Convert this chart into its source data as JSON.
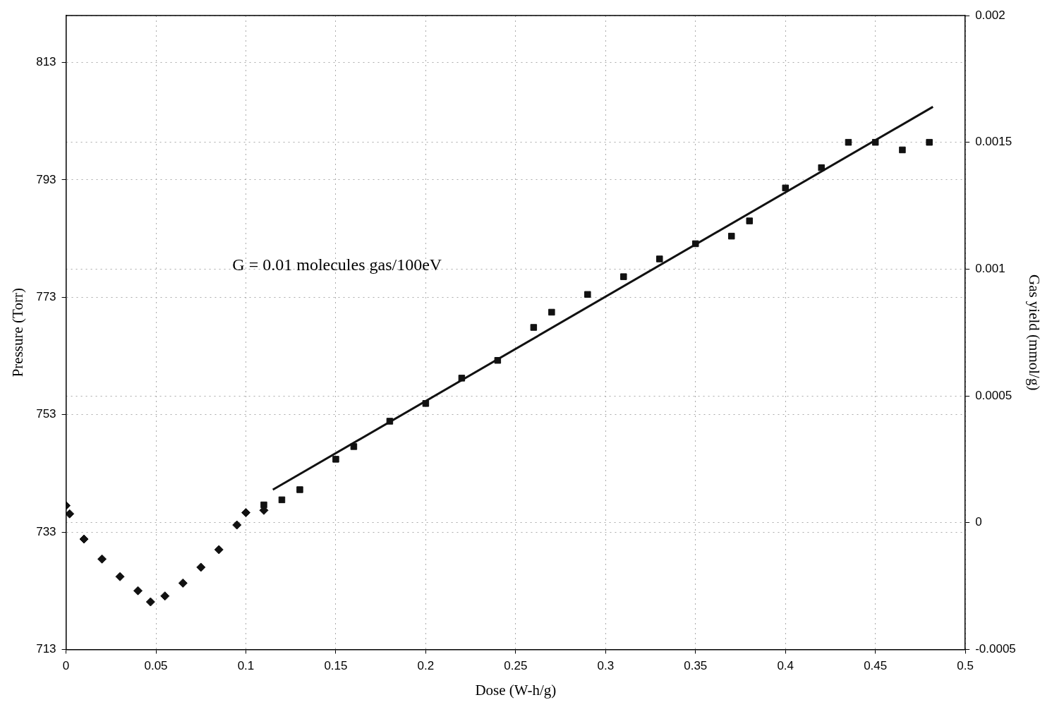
{
  "chart_data": {
    "type": "scatter",
    "xlabel": "Dose (W-h/g)",
    "ylabel": "Pressure (Torr)",
    "y2label": "Gas yield (mmol/g)",
    "xlim": [
      0,
      0.5
    ],
    "xticks": [
      0,
      0.05,
      0.1,
      0.15,
      0.2,
      0.25,
      0.3,
      0.35,
      0.4,
      0.45,
      0.5
    ],
    "ylim": [
      713,
      821
    ],
    "yticks": [
      713,
      733,
      753,
      773,
      793,
      813
    ],
    "y2lim": [
      -0.0005,
      0.002
    ],
    "y2ticks": [
      -0.0005,
      0,
      0.0005,
      0.001,
      0.0015,
      0.002
    ],
    "grid": true,
    "legend": false,
    "annotations": [
      "G = 0.01 molecules gas/100eV"
    ],
    "series": [
      {
        "marker": "diamond",
        "color": "#111111",
        "x": [
          0,
          0.002,
          0.01,
          0.02,
          0.03,
          0.04,
          0.047,
          0.055,
          0.065,
          0.075,
          0.085,
          0.095,
          0.1,
          0.11
        ],
        "values": [
          737.5,
          736.1,
          731.8,
          728.4,
          725.4,
          723.0,
          721.1,
          722.1,
          724.3,
          727.0,
          730.0,
          734.2,
          736.3,
          736.7
        ]
      },
      {
        "marker": "square",
        "axis": "y2",
        "color": "#111111",
        "x": [
          0.11,
          0.12,
          0.13,
          0.15,
          0.16,
          0.18,
          0.2,
          0.22,
          0.24,
          0.26,
          0.27,
          0.29,
          0.31,
          0.33,
          0.35,
          0.37,
          0.38,
          0.4,
          0.42,
          0.435,
          0.45,
          0.465,
          0.48
        ],
        "values": [
          7e-05,
          9e-05,
          0.00013,
          0.00025,
          0.0003,
          0.0004,
          0.00047,
          0.00057,
          0.00064,
          0.00077,
          0.00083,
          0.0009,
          0.00097,
          0.00104,
          0.0011,
          0.00113,
          0.00119,
          0.00132,
          0.0014,
          0.0015,
          0.0015,
          0.00147,
          0.0015
        ]
      },
      {
        "type": "line",
        "marker": "none",
        "axis": "y2",
        "color": "#111111",
        "x": [
          0.115,
          0.482
        ],
        "values": [
          0.00013,
          0.00164
        ]
      }
    ]
  }
}
